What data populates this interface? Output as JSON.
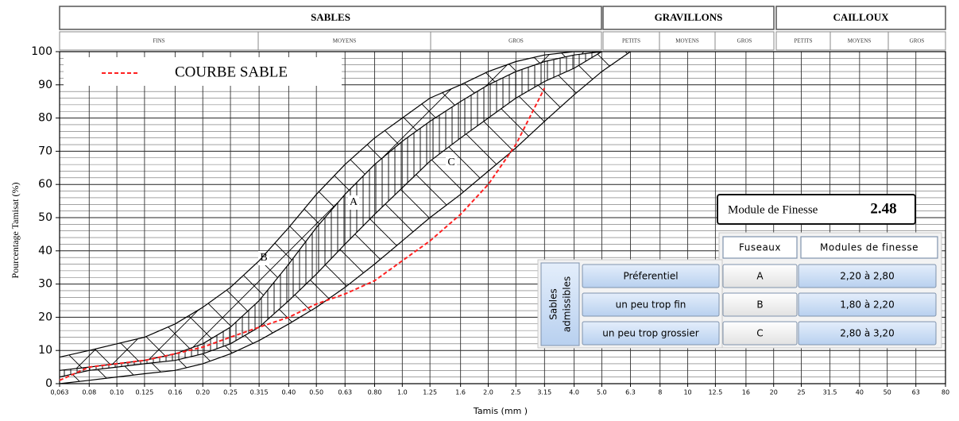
{
  "chart_data": {
    "type": "line",
    "x_label": "Tamis (mm )",
    "y_label": "Pourcentage Tamisat (%)",
    "xscale": "log",
    "xlim": [
      0.063,
      80
    ],
    "xticks": [
      {
        "value": 0.063,
        "label": "0,063"
      },
      0.08,
      {
        "value": 0.1,
        "label": "0.10"
      },
      0.125,
      0.16,
      {
        "value": 0.2,
        "label": "0.20"
      },
      0.25,
      0.315,
      {
        "value": 0.4,
        "label": "0.40"
      },
      {
        "value": 0.5,
        "label": "0.50"
      },
      0.63,
      {
        "value": 0.8,
        "label": "0.80"
      },
      {
        "value": 1,
        "label": "1.0"
      },
      1.25,
      1.6,
      {
        "value": 2,
        "label": "2.0"
      },
      2.5,
      3.15,
      {
        "value": 4,
        "label": "4.0"
      },
      {
        "value": 5,
        "label": "5.0"
      },
      6.3,
      8,
      10,
      12.5,
      16,
      20,
      25,
      31.5,
      40,
      50,
      63,
      80
    ],
    "ylim": [
      0,
      100
    ],
    "yticks": [
      0,
      10,
      20,
      30,
      40,
      50,
      60,
      70,
      80,
      90,
      100
    ],
    "y_minor_ticks": [
      2,
      4,
      6,
      8,
      12,
      14,
      16,
      18,
      22,
      24,
      26,
      28,
      32,
      34,
      36,
      38,
      42,
      44,
      46,
      48,
      52,
      54,
      56,
      58,
      62,
      64,
      66,
      68,
      72,
      74,
      76,
      78,
      82,
      84,
      86,
      88,
      92,
      94,
      96,
      98
    ],
    "grid": true,
    "legend": "top-left",
    "zones": [
      {
        "label": "SABLES",
        "subzones": [
          "FINS",
          "MOYENS",
          "GROS"
        ]
      },
      {
        "label": "GRAVILLONS",
        "subzones": [
          "PETITS",
          "MOYENS",
          "GROS"
        ]
      },
      {
        "label": "CAILLOUX",
        "subzones": [
          "PETITS",
          "MOYENS",
          "GROS"
        ]
      }
    ],
    "series": [
      {
        "name": "COURBE SABLE",
        "color": "#ff2020",
        "dashed": true,
        "x": [
          0.063,
          0.08,
          0.1,
          0.125,
          0.16,
          0.2,
          0.25,
          0.315,
          0.4,
          0.5,
          0.63,
          0.8,
          1,
          1.25,
          1.6,
          2,
          2.5,
          3.15
        ],
        "values": [
          1,
          5,
          6,
          7,
          9,
          11,
          14,
          17,
          20,
          24,
          27,
          31,
          37,
          43,
          51,
          60,
          72,
          89
        ]
      }
    ],
    "fuseau_curves": [
      {
        "color": "#000000",
        "x": [
          0.063,
          0.08,
          0.1,
          0.125,
          0.16,
          0.2,
          0.25,
          0.315,
          0.4,
          0.5,
          0.63,
          0.8,
          1,
          1.25,
          1.6,
          2,
          2.5,
          3.15,
          4,
          5
        ],
        "values": [
          8,
          10,
          12,
          14,
          18,
          23,
          29,
          37,
          47,
          57,
          66,
          74,
          80,
          86,
          90,
          94,
          97,
          99,
          100,
          100
        ]
      },
      {
        "color": "#000000",
        "x": [
          0.063,
          0.08,
          0.1,
          0.125,
          0.16,
          0.2,
          0.25,
          0.315,
          0.4,
          0.5,
          0.63,
          0.8,
          1,
          1.25,
          1.6,
          2,
          2.5,
          3.15,
          4,
          5
        ],
        "values": [
          4,
          5,
          6,
          7,
          9,
          12,
          17,
          25,
          36,
          47,
          57,
          66,
          73,
          79,
          85,
          90,
          94,
          97,
          99,
          100
        ]
      },
      {
        "color": "#000000",
        "x": [
          0.063,
          0.08,
          0.1,
          0.125,
          0.16,
          0.2,
          0.25,
          0.315,
          0.4,
          0.5,
          0.63,
          0.8,
          1,
          1.25,
          1.6,
          2,
          2.5,
          3.15,
          4,
          5
        ],
        "values": [
          2,
          4,
          5,
          6,
          7,
          9,
          12,
          17,
          25,
          33,
          42,
          51,
          59,
          67,
          74,
          80,
          86,
          91,
          95,
          100
        ]
      },
      {
        "color": "#000000",
        "x": [
          0.063,
          0.08,
          0.1,
          0.125,
          0.16,
          0.2,
          0.25,
          0.315,
          0.4,
          0.5,
          0.63,
          0.8,
          1,
          1.25,
          1.6,
          2,
          2.5,
          3.15,
          4,
          5,
          6.3
        ],
        "values": [
          0,
          1,
          2,
          3,
          4,
          6,
          9,
          13,
          18,
          23,
          29,
          36,
          43,
          50,
          57,
          64,
          71,
          79,
          87,
          94,
          100
        ]
      }
    ],
    "fuseau_zones": [
      {
        "label": "B",
        "hatch": "cross"
      },
      {
        "label": "A",
        "hatch": "vertical"
      },
      {
        "label": "C",
        "hatch": "diagonal"
      }
    ],
    "module_finesse": {
      "label": "Module de Finesse",
      "value": 2.48
    },
    "table": {
      "group_label": [
        "Sables",
        "admissibles"
      ],
      "headers": [
        "Fuseaux",
        "Modules de finesse"
      ],
      "rows": [
        [
          "Préferentiel",
          "A",
          "2,20 à 2,80"
        ],
        [
          "un peu trop fin",
          "B",
          "1,80 à 2,20"
        ],
        [
          "un peu trop grossier",
          "C",
          "2,80 à 3,20"
        ]
      ]
    }
  }
}
